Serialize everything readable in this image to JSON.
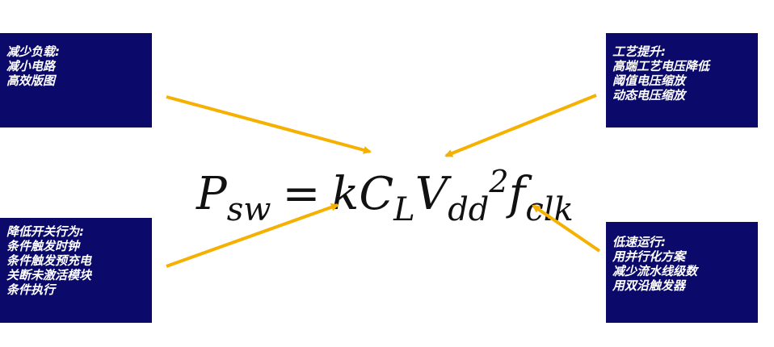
{
  "boxes": {
    "top_left": {
      "lines": [
        "减少负载:",
        "减小电路",
        "高效版图"
      ]
    },
    "top_right": {
      "lines": [
        "工艺提升:",
        "高端工艺电压降低",
        "阈值电压缩放",
        "动态电压缩放"
      ]
    },
    "bottom_left": {
      "lines": [
        "降低开关行为:",
        "条件触发时钟",
        "条件触发预充电",
        "关断未激活模块",
        "条件执行"
      ]
    },
    "bottom_right": {
      "lines": [
        "低速运行:",
        "用并行化方案",
        "减少流水线级数",
        "用双沿触发器"
      ]
    }
  },
  "formula": {
    "P": "P",
    "sw": "sw",
    "eq": "=",
    "k": "k",
    "C": "C",
    "L": "L",
    "V": "V",
    "dd": "dd",
    "exp": "2",
    "f": "f",
    "clk": "clk"
  },
  "colors": {
    "box_fill": "#0b0a6b",
    "box_text": "#ffffff",
    "arrow": "#f5b000"
  }
}
